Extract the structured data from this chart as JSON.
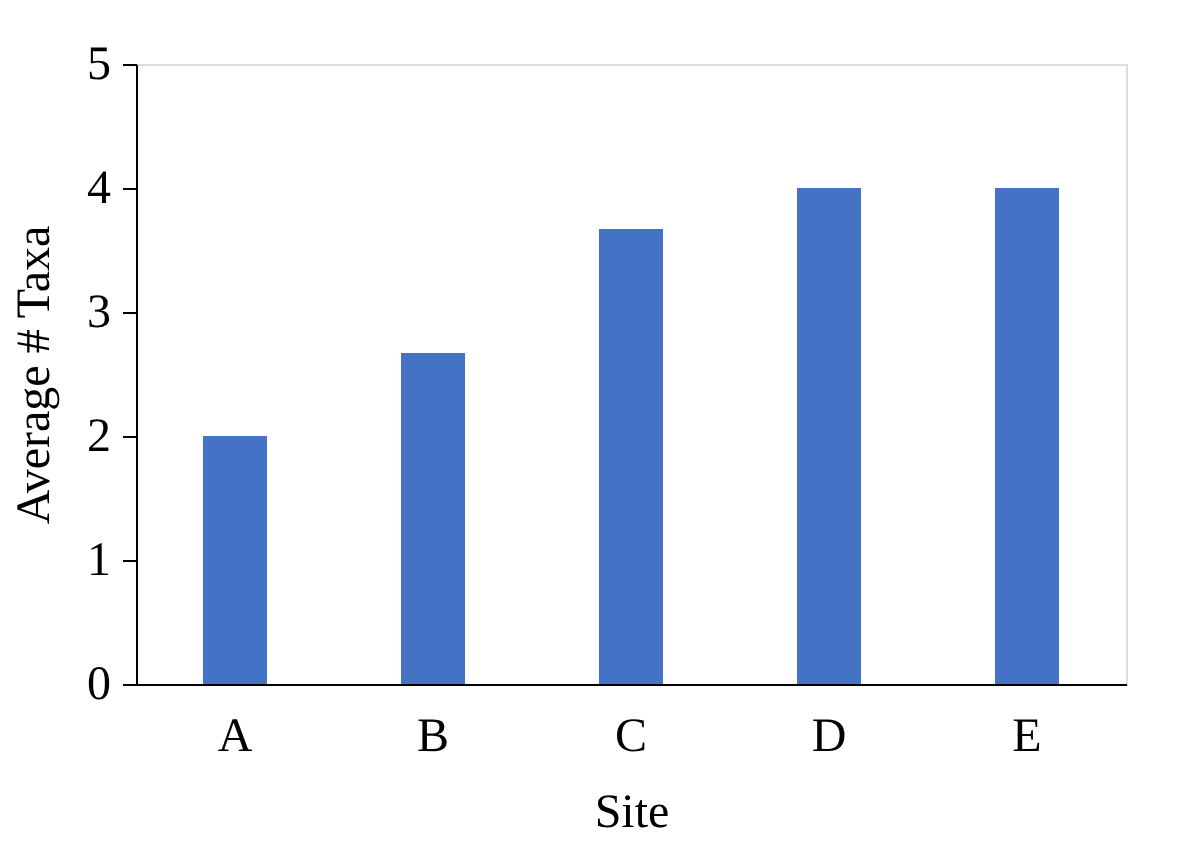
{
  "chart_data": {
    "type": "bar",
    "xlabel": "Site",
    "ylabel": "Average # Taxa",
    "categories": [
      "A",
      "B",
      "C",
      "D",
      "E"
    ],
    "values": [
      2,
      2.67,
      3.67,
      4,
      4
    ],
    "color": "#4472c4",
    "ylim": [
      0,
      5
    ],
    "yticks": [
      0,
      1,
      2,
      3,
      4,
      5
    ],
    "grid": false
  }
}
